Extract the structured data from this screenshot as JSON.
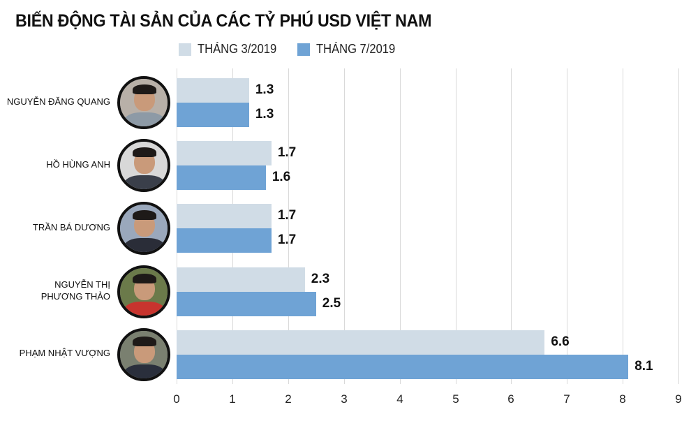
{
  "title": "BIẾN ĐỘNG TÀI SẢN CỦA CÁC TỶ PHÚ USD VIỆT NAM",
  "legend": [
    {
      "label": "THÁNG 3/2019",
      "color": "#d0dce6"
    },
    {
      "label": "THÁNG 7/2019",
      "color": "#6fa3d5"
    }
  ],
  "people": [
    {
      "name_lines": [
        "NGUYỄN ĐĂNG QUANG"
      ],
      "mar": "1.3",
      "jul": "1.3",
      "bg": "#b8b0a8",
      "shirt": "#8d9aa6"
    },
    {
      "name_lines": [
        "HỒ HÙNG ANH"
      ],
      "mar": "1.7",
      "jul": "1.6",
      "bg": "#d8d8d8",
      "shirt": "#3a3f4a"
    },
    {
      "name_lines": [
        "TRẦN BÁ DƯƠNG"
      ],
      "mar": "1.7",
      "jul": "1.7",
      "bg": "#9aa8bc",
      "shirt": "#2a2d38"
    },
    {
      "name_lines": [
        "NGUYỄN THỊ",
        "PHƯƠNG THẢO"
      ],
      "mar": "2.3",
      "jul": "2.5",
      "bg": "#6b7a4a",
      "shirt": "#c8342e"
    },
    {
      "name_lines": [
        "PHẠM NHẬT VƯỢNG"
      ],
      "mar": "6.6",
      "jul": "8.1",
      "bg": "#7a8070",
      "shirt": "#2a2f3c"
    }
  ],
  "axis": {
    "ticks": [
      "0",
      "1",
      "2",
      "3",
      "4",
      "5",
      "6",
      "7",
      "8",
      "9"
    ]
  },
  "chart_data": {
    "type": "bar",
    "orientation": "horizontal",
    "title": "BIẾN ĐỘNG TÀI SẢN CỦA CÁC TỶ PHÚ USD VIỆT NAM",
    "categories": [
      "NGUYỄN ĐĂNG QUANG",
      "HỒ HÙNG ANH",
      "TRẦN BÁ DƯƠNG",
      "NGUYỄN THỊ PHƯƠNG THẢO",
      "PHẠM NHẬT VƯỢNG"
    ],
    "series": [
      {
        "name": "THÁNG 3/2019",
        "color": "#d0dce6",
        "values": [
          1.3,
          1.7,
          1.7,
          2.3,
          6.6
        ]
      },
      {
        "name": "THÁNG 7/2019",
        "color": "#6fa3d5",
        "values": [
          1.3,
          1.6,
          1.7,
          2.5,
          8.1
        ]
      }
    ],
    "xlabel": "",
    "ylabel": "",
    "xlim": [
      0,
      9
    ],
    "xticks": [
      0,
      1,
      2,
      3,
      4,
      5,
      6,
      7,
      8,
      9
    ],
    "grid": true,
    "legend_position": "top",
    "data_labels": true
  }
}
